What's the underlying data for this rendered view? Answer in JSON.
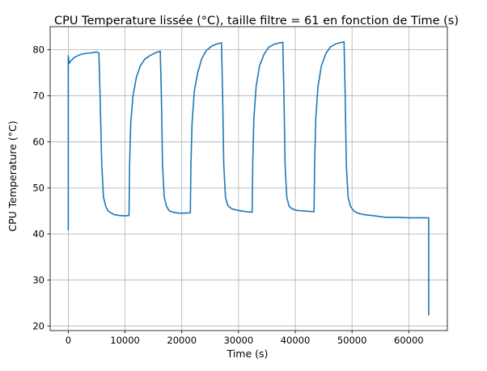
{
  "chart_data": {
    "type": "line",
    "title": "CPU Temperature lissée (°C), taille filtre = 61 en fonction de Time (s)",
    "xlabel": "Time (s)",
    "ylabel": "CPU Temperature (°C)",
    "xlim": [
      -3200,
      66800
    ],
    "ylim": [
      19,
      85
    ],
    "xticks": [
      0,
      10000,
      20000,
      30000,
      40000,
      50000,
      60000
    ],
    "yticks": [
      20,
      30,
      40,
      50,
      60,
      70,
      80
    ],
    "grid": true,
    "color": "#1f77b4",
    "series": [
      {
        "x": [
          0,
          0,
          150,
          400,
          1000,
          2000,
          3000,
          4000,
          5000,
          5400,
          5600,
          5900,
          6200,
          6600,
          7000,
          7500,
          8000,
          9000,
          10000,
          10700,
          10800,
          11000,
          11400,
          12000,
          12700,
          13500,
          14500,
          15500,
          16200,
          16400,
          16600,
          16900,
          17300,
          17800,
          18500,
          19500,
          20500,
          21500,
          21600,
          21800,
          22200,
          22800,
          23500,
          24300,
          25300,
          26300,
          27000,
          27200,
          27400,
          27700,
          28100,
          28700,
          29500,
          30500,
          31500,
          32400,
          32500,
          32700,
          33100,
          33700,
          34500,
          35300,
          36300,
          37300,
          37800,
          38000,
          38200,
          38500,
          38900,
          39500,
          40300,
          41300,
          42300,
          43300,
          43400,
          43600,
          44000,
          44600,
          45400,
          46200,
          47200,
          48200,
          48600,
          48800,
          49000,
          49300,
          49700,
          50300,
          51000,
          52000,
          54000,
          56000,
          58000,
          60000,
          62000,
          63500,
          63500
        ],
        "y": [
          40.8,
          78.7,
          77,
          77.5,
          78.3,
          78.9,
          79.2,
          79.3,
          79.5,
          79.3,
          70,
          55,
          48,
          46,
          45,
          44.6,
          44.2,
          44,
          43.9,
          44,
          55,
          64,
          70,
          74,
          76.5,
          78,
          78.8,
          79.4,
          79.7,
          70,
          55,
          48,
          46,
          45,
          44.7,
          44.5,
          44.5,
          44.6,
          55,
          64,
          71,
          75,
          78,
          79.8,
          80.8,
          81.3,
          81.5,
          70,
          55,
          48,
          46.2,
          45.5,
          45.2,
          45,
          44.8,
          44.7,
          55,
          65,
          72,
          76.5,
          79,
          80.5,
          81.2,
          81.5,
          81.6,
          70,
          55,
          48,
          46,
          45.4,
          45.1,
          45,
          44.9,
          44.8,
          55,
          65,
          72,
          76.5,
          79.2,
          80.6,
          81.3,
          81.6,
          81.7,
          70,
          55,
          48,
          46,
          45,
          44.5,
          44.2,
          43.9,
          43.6,
          43.6,
          43.5,
          43.5,
          43.5,
          22.3
        ]
      }
    ]
  }
}
